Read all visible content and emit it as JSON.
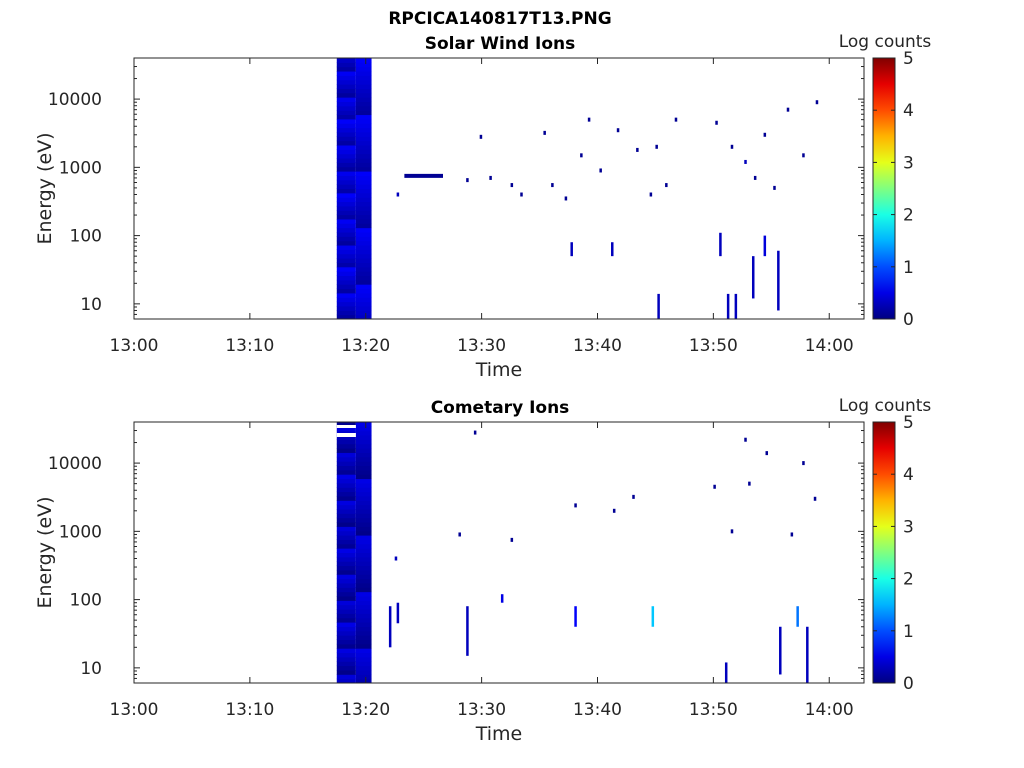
{
  "figure": {
    "title": "RPCICA140817T13.PNG"
  },
  "chart_data": [
    {
      "type": "heatmap",
      "title": "Solar Wind Ions",
      "xlabel": "Time",
      "ylabel": "Energy (eV)",
      "x_ticks": [
        "13:00",
        "13:10",
        "13:20",
        "13:30",
        "13:40",
        "13:50",
        "14:00"
      ],
      "xlim": [
        "13:00",
        "14:03"
      ],
      "y_scale": "log",
      "y_ticks": [
        10,
        100,
        1000,
        10000
      ],
      "y_tick_labels": [
        "10",
        "100",
        "1000",
        "10000"
      ],
      "ylim": [
        6,
        40000
      ],
      "colorbar": {
        "label": "Log counts",
        "range": [
          0,
          5
        ],
        "ticks": [
          "0",
          "1",
          "2",
          "3",
          "4",
          "5"
        ],
        "colormap": "jet"
      },
      "block": {
        "t_start": "13:17:30",
        "t_end": "13:20:30",
        "energy_range": [
          6,
          40000
        ],
        "level_range": [
          0.15,
          0.6
        ]
      },
      "cells": [
        {
          "t": "13:22:40",
          "e": 400,
          "v": 0.3
        },
        {
          "t": "13:23:20",
          "e": 750,
          "v": 0.1,
          "dur": 200
        },
        {
          "t": "13:28:40",
          "e": 650,
          "v": 0.1
        },
        {
          "t": "13:29:50",
          "e": 2800,
          "v": 0.1
        },
        {
          "t": "13:30:40",
          "e": 700,
          "v": 0.1
        },
        {
          "t": "13:32:30",
          "e": 550,
          "v": 0.1
        },
        {
          "t": "13:33:20",
          "e": 400,
          "v": 0.1
        },
        {
          "t": "13:35:20",
          "e": 3200,
          "v": 0.1
        },
        {
          "t": "13:36:00",
          "e": 550,
          "v": 0.1
        },
        {
          "t": "13:37:10",
          "e": 350,
          "v": 0.1
        },
        {
          "t": "13:38:30",
          "e": 1500,
          "v": 0.1
        },
        {
          "t": "13:39:10",
          "e": 5000,
          "v": 0.1
        },
        {
          "t": "13:40:10",
          "e": 900,
          "v": 0.1
        },
        {
          "t": "13:41:40",
          "e": 3500,
          "v": 0.1
        },
        {
          "t": "13:43:20",
          "e": 1800,
          "v": 0.1
        },
        {
          "t": "13:44:30",
          "e": 400,
          "v": 0.1
        },
        {
          "t": "13:45:00",
          "e": 2000,
          "v": 0.1
        },
        {
          "t": "13:45:50",
          "e": 550,
          "v": 0.1
        },
        {
          "t": "13:46:40",
          "e": 5000,
          "v": 0.1
        },
        {
          "t": "13:50:10",
          "e": 4500,
          "v": 0.1
        },
        {
          "t": "13:51:30",
          "e": 2000,
          "v": 0.1
        },
        {
          "t": "13:52:40",
          "e": 1200,
          "v": 0.3
        },
        {
          "t": "13:53:30",
          "e": 700,
          "v": 0.1
        },
        {
          "t": "13:54:20",
          "e": 3000,
          "v": 0.1
        },
        {
          "t": "13:55:10",
          "e": 500,
          "v": 0.1
        },
        {
          "t": "13:56:20",
          "e": 7000,
          "v": 0.1
        },
        {
          "t": "13:57:40",
          "e": 1500,
          "v": 0.1
        },
        {
          "t": "13:58:50",
          "e": 9000,
          "v": 0.1
        }
      ],
      "streaks": [
        {
          "t": "13:37:40",
          "e": [
            50,
            80
          ],
          "v": 0.3
        },
        {
          "t": "13:41:10",
          "e": [
            50,
            80
          ],
          "v": 0.3
        },
        {
          "t": "13:45:10",
          "e": [
            6,
            14
          ],
          "v": 0.3
        },
        {
          "t": "13:50:30",
          "e": [
            50,
            110
          ],
          "v": 0.3
        },
        {
          "t": "13:51:10",
          "e": [
            6,
            14
          ],
          "v": 0.3
        },
        {
          "t": "13:51:50",
          "e": [
            6,
            14
          ],
          "v": 0.3
        },
        {
          "t": "13:53:20",
          "e": [
            12,
            50
          ],
          "v": 0.3
        },
        {
          "t": "13:54:20",
          "e": [
            50,
            100
          ],
          "v": 0.45
        },
        {
          "t": "13:55:30",
          "e": [
            8,
            60
          ],
          "v": 0.3
        }
      ]
    },
    {
      "type": "heatmap",
      "title": "Cometary Ions",
      "xlabel": "Time",
      "ylabel": "Energy (eV)",
      "x_ticks": [
        "13:00",
        "13:10",
        "13:20",
        "13:30",
        "13:40",
        "13:50",
        "14:00"
      ],
      "xlim": [
        "13:00",
        "14:03"
      ],
      "y_scale": "log",
      "y_ticks": [
        10,
        100,
        1000,
        10000
      ],
      "y_tick_labels": [
        "10",
        "100",
        "1000",
        "10000"
      ],
      "ylim": [
        6,
        40000
      ],
      "colorbar": {
        "label": "Log counts",
        "range": [
          0,
          5
        ],
        "ticks": [
          "0",
          "1",
          "2",
          "3",
          "4",
          "5"
        ],
        "colormap": "jet"
      },
      "block": {
        "t_start": "13:17:30",
        "t_end": "13:20:30",
        "energy_range": [
          6,
          40000
        ],
        "level_range": [
          0.05,
          0.5
        ]
      },
      "cells": [
        {
          "t": "13:22:30",
          "e": 400,
          "v": 0.3
        },
        {
          "t": "13:28:00",
          "e": 900,
          "v": 0.1
        },
        {
          "t": "13:29:20",
          "e": 28000,
          "v": 0.1
        },
        {
          "t": "13:32:30",
          "e": 750,
          "v": 0.1
        },
        {
          "t": "13:38:00",
          "e": 2400,
          "v": 0.1
        },
        {
          "t": "13:41:20",
          "e": 2000,
          "v": 0.1
        },
        {
          "t": "13:43:00",
          "e": 3200,
          "v": 0.1
        },
        {
          "t": "13:50:00",
          "e": 4500,
          "v": 0.1
        },
        {
          "t": "13:51:30",
          "e": 1000,
          "v": 0.1
        },
        {
          "t": "13:52:40",
          "e": 22000,
          "v": 0.1
        },
        {
          "t": "13:53:00",
          "e": 5000,
          "v": 0.1
        },
        {
          "t": "13:54:30",
          "e": 14000,
          "v": 0.1
        },
        {
          "t": "13:56:40",
          "e": 900,
          "v": 0.1
        },
        {
          "t": "13:57:40",
          "e": 10000,
          "v": 0.1
        },
        {
          "t": "13:58:40",
          "e": 3000,
          "v": 0.1
        }
      ],
      "streaks": [
        {
          "t": "13:22:00",
          "e": [
            20,
            80
          ],
          "v": 0.3
        },
        {
          "t": "13:22:40",
          "e": [
            45,
            90
          ],
          "v": 0.3
        },
        {
          "t": "13:28:40",
          "e": [
            15,
            80
          ],
          "v": 0.3
        },
        {
          "t": "13:31:40",
          "e": [
            90,
            120
          ],
          "v": 0.5
        },
        {
          "t": "13:38:00",
          "e": [
            40,
            80
          ],
          "v": 0.6
        },
        {
          "t": "13:44:40",
          "e": [
            40,
            80
          ],
          "v": 1.6
        },
        {
          "t": "13:51:00",
          "e": [
            6,
            12
          ],
          "v": 0.3
        },
        {
          "t": "13:55:40",
          "e": [
            8,
            40
          ],
          "v": 0.3
        },
        {
          "t": "13:57:10",
          "e": [
            40,
            80
          ],
          "v": 1.2
        },
        {
          "t": "13:58:00",
          "e": [
            6,
            40
          ],
          "v": 0.3
        }
      ]
    }
  ]
}
